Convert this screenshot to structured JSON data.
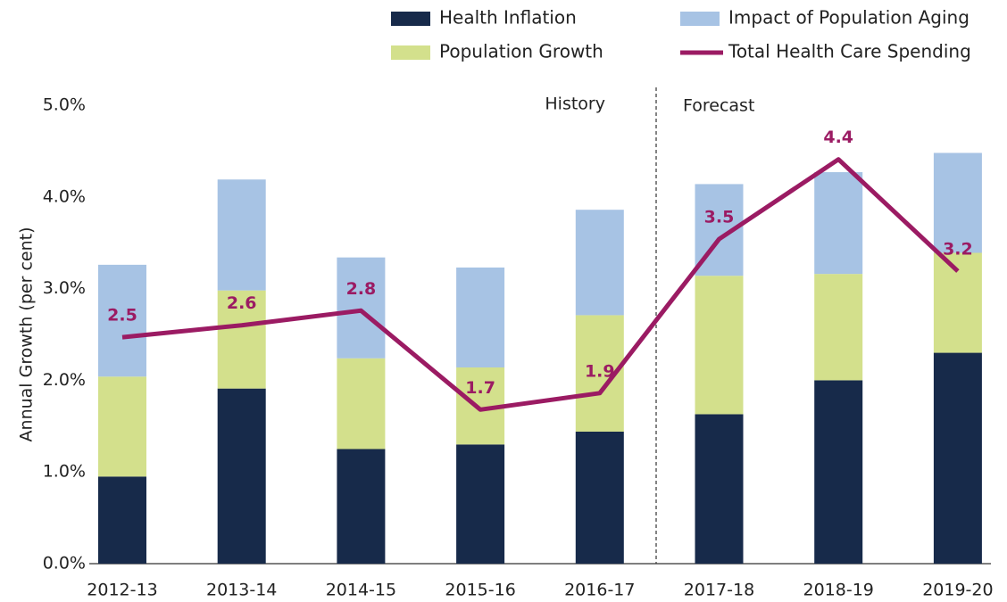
{
  "chart_data": {
    "type": "bar",
    "stacked": true,
    "y_axis_label": "Annual Growth (per cent)",
    "categories": [
      "2012-13",
      "2013-14",
      "2014-15",
      "2015-16",
      "2016-17",
      "2017-18",
      "2018-19",
      "2019-20"
    ],
    "series": [
      {
        "name": "Health Inflation",
        "type": "bar",
        "color": "#172a4a",
        "values": [
          0.95,
          1.91,
          1.25,
          1.3,
          1.44,
          1.63,
          2.0,
          2.3
        ]
      },
      {
        "name": "Population Growth",
        "type": "bar",
        "color": "#d3e08c",
        "values": [
          1.09,
          1.07,
          0.99,
          0.84,
          1.27,
          1.51,
          1.16,
          1.09
        ]
      },
      {
        "name": "Impact of Population Aging",
        "type": "bar",
        "color": "#a7c3e4",
        "values": [
          1.22,
          1.21,
          1.1,
          1.09,
          1.15,
          1.0,
          1.11,
          1.09
        ]
      },
      {
        "name": "Total Health Care Spending",
        "type": "line",
        "color": "#9b1b63",
        "values": [
          2.47,
          2.6,
          2.76,
          1.68,
          1.86,
          3.54,
          4.41,
          3.19
        ],
        "value_labels": [
          "2.5",
          "2.6",
          "2.8",
          "1.7",
          "1.9",
          "3.5",
          "4.4",
          "3.2"
        ]
      }
    ],
    "annotations": [
      "History",
      "Forecast"
    ],
    "ylim": [
      0,
      5
    ],
    "yticks": [
      {
        "value": 0,
        "label": "0.0%"
      },
      {
        "value": 1,
        "label": "1.0%"
      },
      {
        "value": 2,
        "label": "2.0%"
      },
      {
        "value": 3,
        "label": "3.0%"
      },
      {
        "value": 4,
        "label": "4.0%"
      },
      {
        "value": 5,
        "label": "5.0%"
      }
    ],
    "grid": false
  }
}
